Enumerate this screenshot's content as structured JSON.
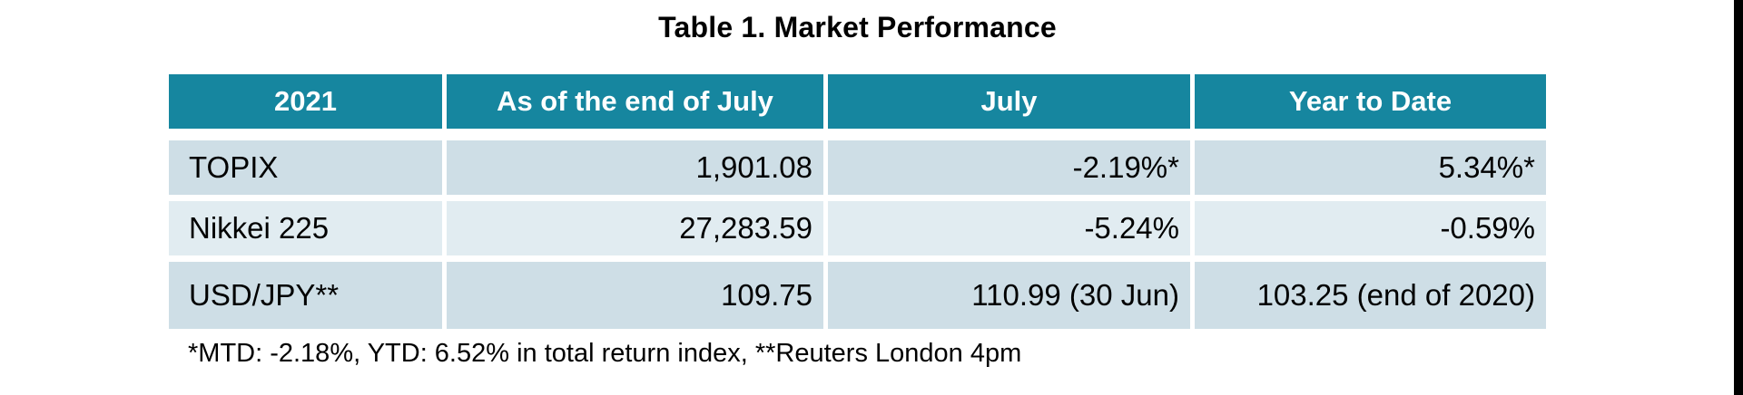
{
  "title": "Table 1. Market Performance",
  "table": {
    "columns": [
      "2021",
      "As of the end of July",
      "July",
      "Year to Date"
    ],
    "rows": [
      [
        "TOPIX",
        "1,901.08",
        "-2.19%*",
        "5.34%*"
      ],
      [
        "Nikkei 225",
        "27,283.59",
        "-5.24%",
        "-0.59%"
      ],
      [
        "USD/JPY**",
        "109.75",
        "110.99 (30 Jun)",
        "103.25 (end of 2020)"
      ]
    ]
  },
  "footnote": "*MTD: -2.18%, YTD: 6.52% in total return index, **Reuters London 4pm",
  "colors": {
    "header_bg": "#16869f",
    "header_text": "#ffffff",
    "row_odd_bg": "#cedee6",
    "row_even_bg": "#e1ecf1",
    "body_text": "#000000",
    "edge_bar": "#000000"
  },
  "chart_data": {
    "type": "table",
    "title": "Table 1. Market Performance",
    "columns": [
      "2021",
      "As of the end of July",
      "July",
      "Year to Date"
    ],
    "rows": [
      [
        "TOPIX",
        "1,901.08",
        "-2.19%*",
        "5.34%*"
      ],
      [
        "Nikkei 225",
        "27,283.59",
        "-5.24%",
        "-0.59%"
      ],
      [
        "USD/JPY**",
        "109.75",
        "110.99 (30 Jun)",
        "103.25 (end of 2020)"
      ]
    ],
    "footnote": "*MTD: -2.18%, YTD: 6.52% in total return index, **Reuters London 4pm"
  }
}
